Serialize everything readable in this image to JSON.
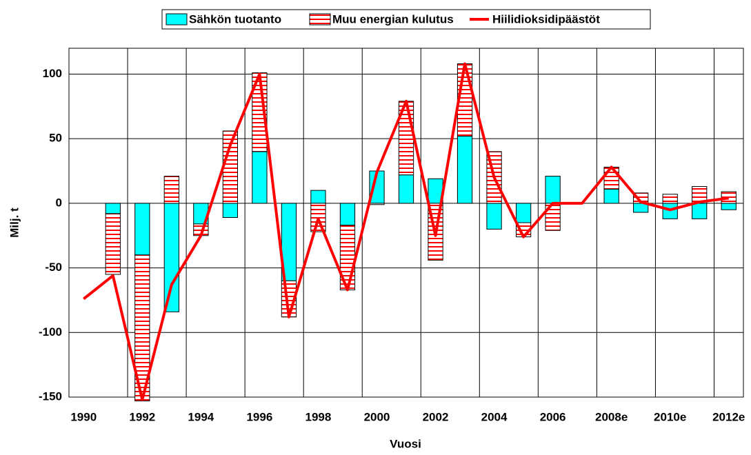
{
  "chart_data": {
    "type": "bar",
    "categories": [
      "1990",
      null,
      "1992",
      null,
      "1994",
      null,
      "1996",
      null,
      "1998",
      null,
      "2000",
      null,
      "2002",
      null,
      "2004",
      null,
      "2006",
      null,
      "2008e",
      null,
      "2010e",
      null,
      "2012e"
    ],
    "series": [
      {
        "name": "Sähkön tuotanto",
        "color": "#00ffff",
        "type": "bar",
        "values": [
          null,
          -8,
          -40,
          -84,
          -16,
          -11,
          40,
          -60,
          10,
          -17,
          25,
          22,
          19,
          52,
          -20,
          -15,
          21,
          null,
          11,
          -7,
          -12,
          -12,
          -5
        ]
      },
      {
        "name": "Muu energian kulutus",
        "color": "#ff0000",
        "type": "bar",
        "values": [
          null,
          -47,
          -113,
          21,
          -9,
          56,
          61,
          -28,
          -22,
          -50,
          -1,
          57,
          -44,
          56,
          40,
          -11,
          -21,
          null,
          17,
          8,
          7,
          13,
          9
        ]
      },
      {
        "name": "Hiilidioksidipäästöt",
        "color": "#ff0000",
        "type": "line",
        "values": [
          -74,
          -56,
          -152,
          -63,
          -25,
          45,
          100,
          -88,
          -12,
          -67,
          24,
          79,
          -25,
          108,
          20,
          -26,
          0,
          0,
          28,
          1,
          -5,
          1,
          4
        ]
      }
    ],
    "x_label": "Vuosi",
    "y_label": "Milj. t",
    "ylim": [
      -150,
      120
    ],
    "yticks": [
      -150,
      -100,
      -50,
      0,
      50,
      100
    ],
    "grid": true,
    "legend": "top"
  }
}
